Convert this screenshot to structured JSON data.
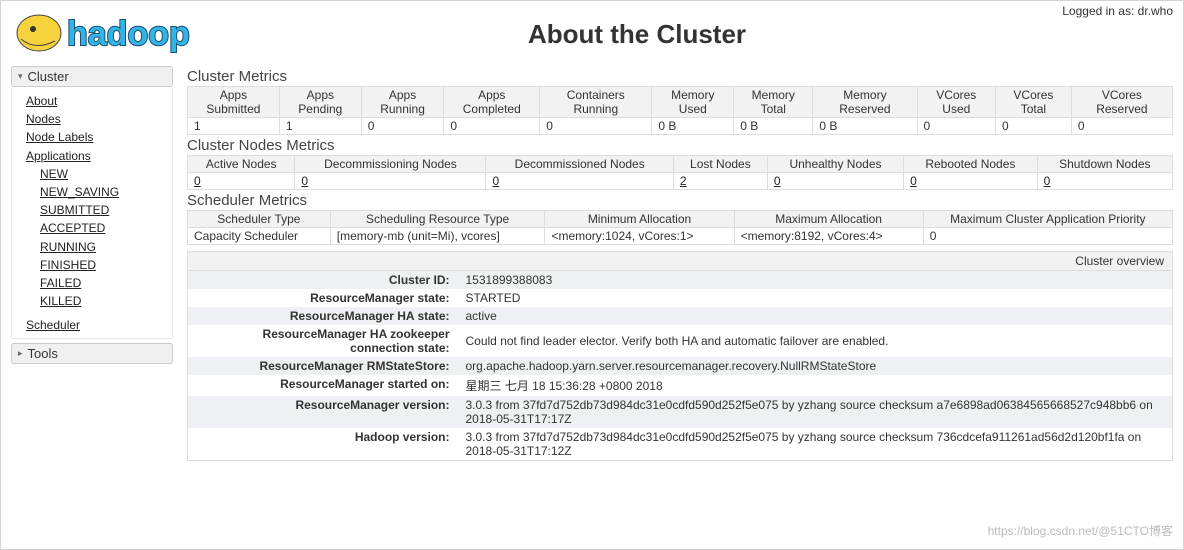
{
  "login": {
    "label": "Logged in as: dr.who"
  },
  "title": "About the Cluster",
  "sidebar": {
    "cluster": {
      "label": "Cluster",
      "items": [
        {
          "label": "About"
        },
        {
          "label": "Nodes"
        },
        {
          "label": "Node Labels"
        },
        {
          "label": "Applications"
        }
      ],
      "appStates": [
        {
          "label": "NEW"
        },
        {
          "label": "NEW_SAVING"
        },
        {
          "label": "SUBMITTED"
        },
        {
          "label": "ACCEPTED"
        },
        {
          "label": "RUNNING"
        },
        {
          "label": "FINISHED"
        },
        {
          "label": "FAILED"
        },
        {
          "label": "KILLED"
        }
      ],
      "scheduler": {
        "label": "Scheduler"
      }
    },
    "tools": {
      "label": "Tools"
    }
  },
  "clusterMetrics": {
    "heading": "Cluster Metrics",
    "headers": [
      "Apps Submitted",
      "Apps Pending",
      "Apps Running",
      "Apps Completed",
      "Containers Running",
      "Memory Used",
      "Memory Total",
      "Memory Reserved",
      "VCores Used",
      "VCores Total",
      "VCores Reserved"
    ],
    "row": [
      "1",
      "1",
      "0",
      "0",
      "0",
      "0 B",
      "0 B",
      "0 B",
      "0",
      "0",
      "0"
    ]
  },
  "nodesMetrics": {
    "heading": "Cluster Nodes Metrics",
    "headers": [
      "Active Nodes",
      "Decommissioning Nodes",
      "Decommissioned Nodes",
      "Lost Nodes",
      "Unhealthy Nodes",
      "Rebooted Nodes",
      "Shutdown Nodes"
    ],
    "row": [
      "0",
      "0",
      "0",
      "2",
      "0",
      "0",
      "0"
    ]
  },
  "schedulerMetrics": {
    "heading": "Scheduler Metrics",
    "headers": [
      "Scheduler Type",
      "Scheduling Resource Type",
      "Minimum Allocation",
      "Maximum Allocation",
      "Maximum Cluster Application Priority"
    ],
    "row": [
      "Capacity Scheduler",
      "[memory-mb (unit=Mi), vcores]",
      "<memory:1024, vCores:1>",
      "<memory:8192, vCores:4>",
      "0"
    ]
  },
  "overview": {
    "heading": "Cluster overview",
    "rows": [
      {
        "label": "Cluster ID:",
        "value": "1531899388083"
      },
      {
        "label": "ResourceManager state:",
        "value": "STARTED"
      },
      {
        "label": "ResourceManager HA state:",
        "value": "active"
      },
      {
        "label": "ResourceManager HA zookeeper connection state:",
        "value": "Could not find leader elector. Verify both HA and automatic failover are enabled."
      },
      {
        "label": "ResourceManager RMStateStore:",
        "value": "org.apache.hadoop.yarn.server.resourcemanager.recovery.NullRMStateStore"
      },
      {
        "label": "ResourceManager started on:",
        "value": "星期三 七月 18 15:36:28 +0800 2018"
      },
      {
        "label": "ResourceManager version:",
        "value": "3.0.3 from 37fd7d752db73d984dc31e0cdfd590d252f5e075 by yzhang source checksum a7e6898ad06384565668527c948bb6 on 2018-05-31T17:17Z"
      },
      {
        "label": "Hadoop version:",
        "value": "3.0.3 from 37fd7d752db73d984dc31e0cdfd590d252f5e075 by yzhang source checksum 736cdcefa911261ad56d2d120bf1fa on 2018-05-31T17:12Z"
      }
    ]
  },
  "watermark": "https://blog.csdn.net/@51CTO博客"
}
